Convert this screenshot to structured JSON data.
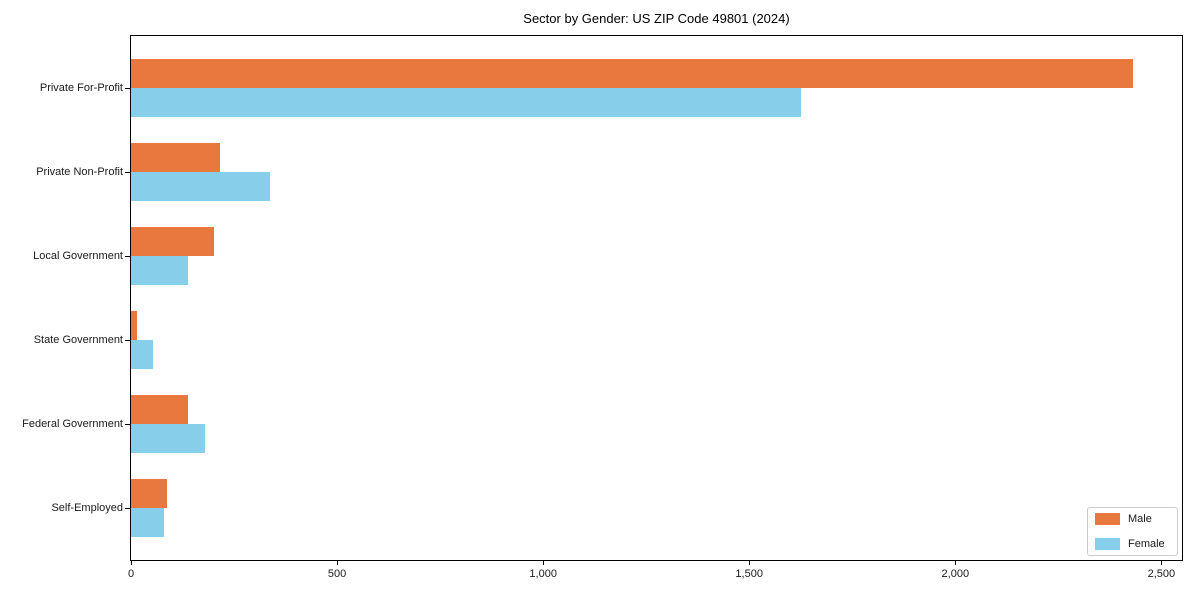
{
  "title": "Sector by Gender: US ZIP Code 49801 (2024)",
  "chart_data": {
    "type": "bar",
    "orientation": "horizontal",
    "title": "Sector by Gender: US ZIP Code 49801 (2024)",
    "categories": [
      "Private For-Profit",
      "Private Non-Profit",
      "Local Government",
      "State Government",
      "Federal Government",
      "Self-Employed"
    ],
    "series": [
      {
        "name": "Male",
        "color": "#e8783d",
        "values": [
          2430,
          217,
          201,
          14,
          139,
          88
        ]
      },
      {
        "name": "Female",
        "color": "#87ceeb",
        "values": [
          1625,
          337,
          138,
          53,
          179,
          80
        ]
      }
    ],
    "xlabel": "",
    "ylabel": "",
    "xlim": [
      0,
      2550
    ],
    "xticks": [
      0,
      500,
      1000,
      1500,
      2000,
      2500
    ],
    "xtick_labels": [
      "0",
      "500",
      "1,000",
      "1,500",
      "2,000",
      "2,500"
    ],
    "legend_position": "lower right",
    "grid": false,
    "colors": {
      "axis": "#000000",
      "legend_border": "#cccccc",
      "background": "#ffffff"
    }
  }
}
